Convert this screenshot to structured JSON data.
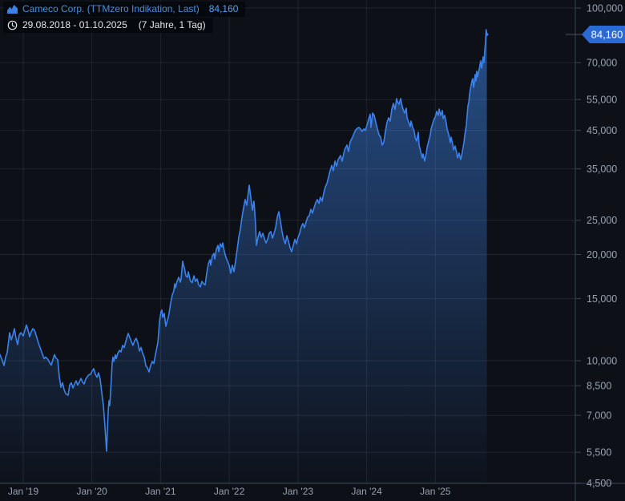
{
  "header": {
    "series_label": "Cameco Corp. (TTMzero Indikation, Last)",
    "last_value": "84,160",
    "range_label": "29.08.2018 - 01.10.2025",
    "duration_label": "(7 Jahre, 1 Tag)"
  },
  "badge": {
    "text": "84,160",
    "value": 84160,
    "color": "#2a6ad5",
    "text_color": "#ffffff"
  },
  "colors": {
    "background": "#0d1017",
    "line": "#3b82ec",
    "fill_top": "#3b7fe0",
    "grid": "#9aa7bd",
    "axis": "#3c4454",
    "tick_label": "#98a1b0",
    "legend_title": "#4b8edd",
    "legend_value": "#5ca0ef",
    "legend_date": "#e4e7ec"
  },
  "chart_data": {
    "type": "area",
    "title": "Cameco Corp. (TTMzero Indikation, Last)",
    "legend_position": "top-left",
    "grid": true,
    "x_axis": {
      "ticks": [
        {
          "year": 2019,
          "label": "Jan '19"
        },
        {
          "year": 2020,
          "label": "Jan '20"
        },
        {
          "year": 2021,
          "label": "Jan '21"
        },
        {
          "year": 2022,
          "label": "Jan '22"
        },
        {
          "year": 2023,
          "label": "Jan '23"
        },
        {
          "year": 2024,
          "label": "Jan '24"
        },
        {
          "year": 2025,
          "label": "Jan '25"
        }
      ],
      "range": [
        2018.66,
        2025.75
      ]
    },
    "y_axis": {
      "scale": "log",
      "side": "right",
      "ticks": [
        100000,
        70000,
        55000,
        45000,
        35000,
        25000,
        20000,
        15000,
        10000,
        8500,
        7000,
        5500,
        4500
      ],
      "range": [
        4400,
        102000
      ]
    },
    "last_value": 84160,
    "points": [
      [
        2018.662,
        10400
      ],
      [
        2018.697,
        10000
      ],
      [
        2018.72,
        9690
      ],
      [
        2018.743,
        10240
      ],
      [
        2018.767,
        10540
      ],
      [
        2018.802,
        12010
      ],
      [
        2018.825,
        11460
      ],
      [
        2018.848,
        11820
      ],
      [
        2018.872,
        12330
      ],
      [
        2018.895,
        11580
      ],
      [
        2018.918,
        11110
      ],
      [
        2018.942,
        11820
      ],
      [
        2018.965,
        12010
      ],
      [
        2019.0,
        11760
      ],
      [
        2019.023,
        12200
      ],
      [
        2019.047,
        12630
      ],
      [
        2019.07,
        12200
      ],
      [
        2019.093,
        11700
      ],
      [
        2019.117,
        12070
      ],
      [
        2019.14,
        12330
      ],
      [
        2019.163,
        12200
      ],
      [
        2019.187,
        11820
      ],
      [
        2019.222,
        11220
      ],
      [
        2019.245,
        10900
      ],
      [
        2019.28,
        10430
      ],
      [
        2019.303,
        10130
      ],
      [
        2019.327,
        10240
      ],
      [
        2019.362,
        10070
      ],
      [
        2019.385,
        9870
      ],
      [
        2019.408,
        9710
      ],
      [
        2019.432,
        10070
      ],
      [
        2019.455,
        10400
      ],
      [
        2019.478,
        10160
      ],
      [
        2019.502,
        10070
      ],
      [
        2019.525,
        9010
      ],
      [
        2019.548,
        8410
      ],
      [
        2019.572,
        8660
      ],
      [
        2019.595,
        8280
      ],
      [
        2019.618,
        8070
      ],
      [
        2019.653,
        7980
      ],
      [
        2019.677,
        8530
      ],
      [
        2019.7,
        8660
      ],
      [
        2019.723,
        8370
      ],
      [
        2019.747,
        8590
      ],
      [
        2019.77,
        8770
      ],
      [
        2019.793,
        8530
      ],
      [
        2019.817,
        8700
      ],
      [
        2019.84,
        8910
      ],
      [
        2019.863,
        8700
      ],
      [
        2019.887,
        8590
      ],
      [
        2019.91,
        8870
      ],
      [
        2019.933,
        9010
      ],
      [
        2019.957,
        9130
      ],
      [
        2019.98,
        9150
      ],
      [
        2020.003,
        9340
      ],
      [
        2020.027,
        9490
      ],
      [
        2020.05,
        9150
      ],
      [
        2020.073,
        8980
      ],
      [
        2020.097,
        9240
      ],
      [
        2020.12,
        8870
      ],
      [
        2020.143,
        8110
      ],
      [
        2020.167,
        7460
      ],
      [
        2020.19,
        6510
      ],
      [
        2020.213,
        5540
      ],
      [
        2020.225,
        6310
      ],
      [
        2020.237,
        7150
      ],
      [
        2020.248,
        7700
      ],
      [
        2020.26,
        7460
      ],
      [
        2020.272,
        8150
      ],
      [
        2020.283,
        8910
      ],
      [
        2020.295,
        9870
      ],
      [
        2020.307,
        10240
      ],
      [
        2020.318,
        9950
      ],
      [
        2020.342,
        10400
      ],
      [
        2020.353,
        10130
      ],
      [
        2020.377,
        10490
      ],
      [
        2020.4,
        10700
      ],
      [
        2020.423,
        10590
      ],
      [
        2020.447,
        11050
      ],
      [
        2020.47,
        10900
      ],
      [
        2020.493,
        11340
      ],
      [
        2020.517,
        11760
      ],
      [
        2020.528,
        11950
      ],
      [
        2020.552,
        11640
      ],
      [
        2020.575,
        11310
      ],
      [
        2020.598,
        11050
      ],
      [
        2020.622,
        11400
      ],
      [
        2020.645,
        11580
      ],
      [
        2020.668,
        11250
      ],
      [
        2020.692,
        10650
      ],
      [
        2020.715,
        10900
      ],
      [
        2020.738,
        10490
      ],
      [
        2020.762,
        10240
      ],
      [
        2020.785,
        9690
      ],
      [
        2020.808,
        9540
      ],
      [
        2020.832,
        9290
      ],
      [
        2020.855,
        9690
      ],
      [
        2020.878,
        9950
      ],
      [
        2020.902,
        9820
      ],
      [
        2020.925,
        10400
      ],
      [
        2020.948,
        10960
      ],
      [
        2020.96,
        11250
      ],
      [
        2020.972,
        11950
      ],
      [
        2020.983,
        12870
      ],
      [
        2020.995,
        13380
      ],
      [
        2021.007,
        13760
      ],
      [
        2021.018,
        13930
      ],
      [
        2021.03,
        13270
      ],
      [
        2021.053,
        13620
      ],
      [
        2021.065,
        12990
      ],
      [
        2021.077,
        12520
      ],
      [
        2021.088,
        12790
      ],
      [
        2021.112,
        13270
      ],
      [
        2021.123,
        13620
      ],
      [
        2021.147,
        14580
      ],
      [
        2021.17,
        15360
      ],
      [
        2021.193,
        15800
      ],
      [
        2021.205,
        16530
      ],
      [
        2021.217,
        16100
      ],
      [
        2021.24,
        16790
      ],
      [
        2021.263,
        17240
      ],
      [
        2021.287,
        16700
      ],
      [
        2021.298,
        17050
      ],
      [
        2021.322,
        19140
      ],
      [
        2021.333,
        18650
      ],
      [
        2021.345,
        18360
      ],
      [
        2021.368,
        17410
      ],
      [
        2021.392,
        17240
      ],
      [
        2021.403,
        17870
      ],
      [
        2021.427,
        17050
      ],
      [
        2021.438,
        16790
      ],
      [
        2021.462,
        16650
      ],
      [
        2021.485,
        17410
      ],
      [
        2021.508,
        16790
      ],
      [
        2021.532,
        17050
      ],
      [
        2021.555,
        16400
      ],
      [
        2021.578,
        16190
      ],
      [
        2021.602,
        16790
      ],
      [
        2021.625,
        16530
      ],
      [
        2021.648,
        16400
      ],
      [
        2021.672,
        17690
      ],
      [
        2021.695,
        18820
      ],
      [
        2021.718,
        19330
      ],
      [
        2021.73,
        18650
      ],
      [
        2021.753,
        19850
      ],
      [
        2021.777,
        20150
      ],
      [
        2021.788,
        19430
      ],
      [
        2021.812,
        20690
      ],
      [
        2021.835,
        21240
      ],
      [
        2021.847,
        20370
      ],
      [
        2021.87,
        21460
      ],
      [
        2021.893,
        21030
      ],
      [
        2021.905,
        21570
      ],
      [
        2021.928,
        20370
      ],
      [
        2021.952,
        19640
      ],
      [
        2021.975,
        19140
      ],
      [
        2021.998,
        18650
      ],
      [
        2022.022,
        17690
      ],
      [
        2022.045,
        18650
      ],
      [
        2022.068,
        17870
      ],
      [
        2022.092,
        19140
      ],
      [
        2022.115,
        20690
      ],
      [
        2022.138,
        22390
      ],
      [
        2022.162,
        23590
      ],
      [
        2022.185,
        25520
      ],
      [
        2022.208,
        27170
      ],
      [
        2022.232,
        28630
      ],
      [
        2022.255,
        27600
      ],
      [
        2022.278,
        30170
      ],
      [
        2022.29,
        31460
      ],
      [
        2022.313,
        29090
      ],
      [
        2022.337,
        26700
      ],
      [
        2022.36,
        28330
      ],
      [
        2022.383,
        24220
      ],
      [
        2022.395,
        21240
      ],
      [
        2022.418,
        22390
      ],
      [
        2022.442,
        23230
      ],
      [
        2022.465,
        22390
      ],
      [
        2022.488,
        22970
      ],
      [
        2022.512,
        22200
      ],
      [
        2022.535,
        21570
      ],
      [
        2022.558,
        22080
      ],
      [
        2022.582,
        22970
      ],
      [
        2022.605,
        23230
      ],
      [
        2022.628,
        22270
      ],
      [
        2022.652,
        22970
      ],
      [
        2022.675,
        23840
      ],
      [
        2022.698,
        25520
      ],
      [
        2022.722,
        26460
      ],
      [
        2022.745,
        24860
      ],
      [
        2022.768,
        23230
      ],
      [
        2022.792,
        22080
      ],
      [
        2022.815,
        21460
      ],
      [
        2022.838,
        22620
      ],
      [
        2022.862,
        21810
      ],
      [
        2022.885,
        20920
      ],
      [
        2022.908,
        20370
      ],
      [
        2022.932,
        21240
      ],
      [
        2022.955,
        22080
      ],
      [
        2022.978,
        21460
      ],
      [
        2023.002,
        22390
      ],
      [
        2023.025,
        22970
      ],
      [
        2023.048,
        23960
      ],
      [
        2023.072,
        24480
      ],
      [
        2023.095,
        23840
      ],
      [
        2023.118,
        24740
      ],
      [
        2023.142,
        25520
      ],
      [
        2023.165,
        25780
      ],
      [
        2023.188,
        26880
      ],
      [
        2023.212,
        26210
      ],
      [
        2023.235,
        27170
      ],
      [
        2023.258,
        28050
      ],
      [
        2023.282,
        28630
      ],
      [
        2023.305,
        27930
      ],
      [
        2023.328,
        29090
      ],
      [
        2023.352,
        28330
      ],
      [
        2023.375,
        29850
      ],
      [
        2023.398,
        31130
      ],
      [
        2023.422,
        31790
      ],
      [
        2023.445,
        33150
      ],
      [
        2023.468,
        34560
      ],
      [
        2023.492,
        35800
      ],
      [
        2023.515,
        34560
      ],
      [
        2023.538,
        36810
      ],
      [
        2023.562,
        35590
      ],
      [
        2023.585,
        37200
      ],
      [
        2023.62,
        38180
      ],
      [
        2023.643,
        36810
      ],
      [
        2023.678,
        39600
      ],
      [
        2023.713,
        40870
      ],
      [
        2023.737,
        39190
      ],
      [
        2023.76,
        41740
      ],
      [
        2023.795,
        43070
      ],
      [
        2023.818,
        44210
      ],
      [
        2023.842,
        45140
      ],
      [
        2023.865,
        45620
      ],
      [
        2023.888,
        45860
      ],
      [
        2023.912,
        45390
      ],
      [
        2023.935,
        44670
      ],
      [
        2023.958,
        45390
      ],
      [
        2023.982,
        45000
      ],
      [
        2024.005,
        46580
      ],
      [
        2024.028,
        48330
      ],
      [
        2024.052,
        50000
      ],
      [
        2024.063,
        45860
      ],
      [
        2024.087,
        50390
      ],
      [
        2024.11,
        49600
      ],
      [
        2024.133,
        47450
      ],
      [
        2024.157,
        45390
      ],
      [
        2024.18,
        43740
      ],
      [
        2024.203,
        43070
      ],
      [
        2024.227,
        40870
      ],
      [
        2024.25,
        41740
      ],
      [
        2024.273,
        44670
      ],
      [
        2024.297,
        47450
      ],
      [
        2024.32,
        48830
      ],
      [
        2024.343,
        47800
      ],
      [
        2024.367,
        51720
      ],
      [
        2024.39,
        53640
      ],
      [
        2024.413,
        51580
      ],
      [
        2024.437,
        55360
      ],
      [
        2024.448,
        54200
      ],
      [
        2024.472,
        53370
      ],
      [
        2024.495,
        55360
      ],
      [
        2024.518,
        52540
      ],
      [
        2024.542,
        50910
      ],
      [
        2024.553,
        50390
      ],
      [
        2024.577,
        52000
      ],
      [
        2024.588,
        48830
      ],
      [
        2024.612,
        47450
      ],
      [
        2024.635,
        46090
      ],
      [
        2024.647,
        47800
      ],
      [
        2024.67,
        45860
      ],
      [
        2024.693,
        44670
      ],
      [
        2024.705,
        43070
      ],
      [
        2024.728,
        41950
      ],
      [
        2024.752,
        44440
      ],
      [
        2024.763,
        40870
      ],
      [
        2024.787,
        39190
      ],
      [
        2024.81,
        37580
      ],
      [
        2024.822,
        38590
      ],
      [
        2024.845,
        36810
      ],
      [
        2024.868,
        38790
      ],
      [
        2024.88,
        40230
      ],
      [
        2024.903,
        41950
      ],
      [
        2024.927,
        43740
      ],
      [
        2024.938,
        45390
      ],
      [
        2024.962,
        47070
      ],
      [
        2024.985,
        48590
      ],
      [
        2025.0,
        49090
      ],
      [
        2025.02,
        50910
      ],
      [
        2025.043,
        49600
      ],
      [
        2025.055,
        51720
      ],
      [
        2025.078,
        49600
      ],
      [
        2025.102,
        51180
      ],
      [
        2025.113,
        48590
      ],
      [
        2025.137,
        49600
      ],
      [
        2025.16,
        47070
      ],
      [
        2025.172,
        45390
      ],
      [
        2025.195,
        43740
      ],
      [
        2025.218,
        41520
      ],
      [
        2025.23,
        43070
      ],
      [
        2025.253,
        41090
      ],
      [
        2025.265,
        39600
      ],
      [
        2025.288,
        40660
      ],
      [
        2025.312,
        38790
      ],
      [
        2025.323,
        37580
      ],
      [
        2025.347,
        38790
      ],
      [
        2025.37,
        37200
      ],
      [
        2025.393,
        39190
      ],
      [
        2025.417,
        41520
      ],
      [
        2025.428,
        43520
      ],
      [
        2025.452,
        46580
      ],
      [
        2025.463,
        49600
      ],
      [
        2025.475,
        52810
      ],
      [
        2025.487,
        53940
      ],
      [
        2025.498,
        56830
      ],
      [
        2025.51,
        58940
      ],
      [
        2025.522,
        60520
      ],
      [
        2025.533,
        62110
      ],
      [
        2025.545,
        63100
      ],
      [
        2025.557,
        59570
      ],
      [
        2025.568,
        61450
      ],
      [
        2025.58,
        64790
      ],
      [
        2025.592,
        62110
      ],
      [
        2025.603,
        66160
      ],
      [
        2025.615,
        63760
      ],
      [
        2025.627,
        65460
      ],
      [
        2025.638,
        66830
      ],
      [
        2025.65,
        68960
      ],
      [
        2025.662,
        70790
      ],
      [
        2025.673,
        67530
      ],
      [
        2025.685,
        69700
      ],
      [
        2025.697,
        72690
      ],
      [
        2025.708,
        70070
      ],
      [
        2025.72,
        75800
      ],
      [
        2025.73,
        79870
      ],
      [
        2025.74,
        86820
      ],
      [
        2025.75,
        84160
      ]
    ]
  }
}
